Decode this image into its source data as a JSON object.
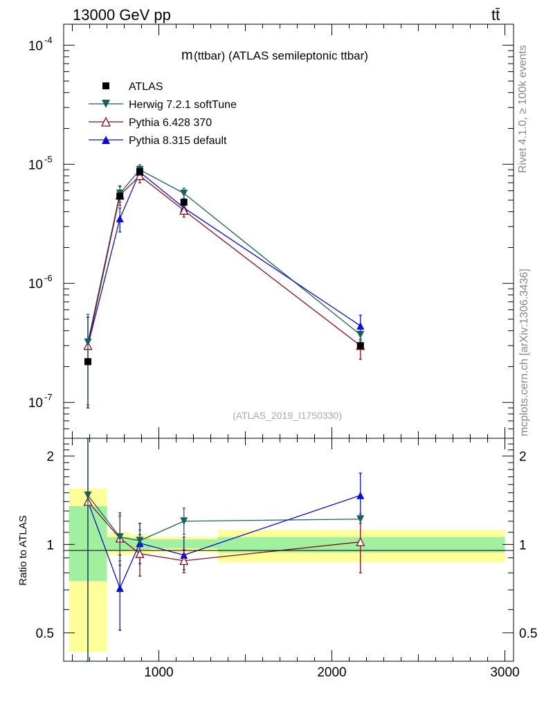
{
  "header": {
    "energy_label": "13000 GeV pp",
    "process_label": "tt̄"
  },
  "side": {
    "rivet_label": "Rivet 4.1.0, ≥ 100k events",
    "mcplots_label": "mcplots.cern.ch [arXiv:1306.3436]"
  },
  "chart_data": {
    "type": "scatter",
    "title_m": "m",
    "title_rest": "(ttbar) (ATLAS semileptonic ttbar)",
    "analysis_id": "(ATLAS_2019_I1750330)",
    "ylabel_ratio": "Ratio to ATLAS",
    "xlim": [
      450,
      3050
    ],
    "ylim_main": [
      5e-08,
      0.00015
    ],
    "ylim_ratio": [
      0.4,
      2.3
    ],
    "y_tick_exponents": [
      "-7",
      "-6",
      "-5",
      "-4"
    ],
    "y_tick_base": "10",
    "x_ticks": [
      "1000",
      "2000",
      "3000"
    ],
    "ratio_ticks": [
      "0.5",
      "1",
      "2"
    ],
    "colors": {
      "atlas": "#000000",
      "herwig": "#1a5e5e",
      "pythia6": "#8b0a1f",
      "pythia8": "#0a0adc",
      "band_inner": "#a0f0a0",
      "band_outer": "#ffff99"
    },
    "bins": [
      {
        "lo": 480,
        "hi": 700,
        "inner": [
          0.75,
          1.35
        ],
        "outer": [
          0.43,
          1.55
        ]
      },
      {
        "lo": 700,
        "hi": 830,
        "inner": [
          0.95,
          1.06
        ],
        "outer": [
          0.92,
          1.1
        ]
      },
      {
        "lo": 830,
        "hi": 950,
        "inner": [
          0.96,
          1.05
        ],
        "outer": [
          0.93,
          1.08
        ]
      },
      {
        "lo": 950,
        "hi": 1340,
        "inner": [
          0.97,
          1.04
        ],
        "outer": [
          0.94,
          1.06
        ]
      },
      {
        "lo": 1340,
        "hi": 3000,
        "inner": [
          0.94,
          1.06
        ],
        "outer": [
          0.87,
          1.12
        ]
      }
    ],
    "x": [
      590,
      775,
      890,
      1145,
      2165
    ],
    "series": [
      {
        "name": "ATLAS",
        "marker": "square",
        "values": [
          2.2e-07,
          5.4e-06,
          8.7e-06,
          4.8e-06,
          3e-07
        ],
        "err_low": [
          2.2e-07,
          5.4e-06,
          8.7e-06,
          4.8e-06,
          3e-07
        ],
        "err_high": [
          2.2e-07,
          5.4e-06,
          8.7e-06,
          4.8e-06,
          3e-07
        ],
        "ratio": null
      },
      {
        "name": "Herwig 7.2.1 softTune",
        "marker": "tri-down",
        "values": [
          3.2e-07,
          5.7e-06,
          9e-06,
          5.7e-06,
          3.7e-07
        ],
        "err_low": [
          9.5e-08,
          4.8e-06,
          8.1e-06,
          5.2e-06,
          3.3e-07
        ],
        "err_high": [
          5.5e-07,
          6.6e-06,
          9.9e-06,
          6.3e-06,
          4.1e-07
        ],
        "ratio": [
          1.47,
          1.06,
          1.03,
          1.2,
          1.22
        ],
        "ratio_low": [
          0.35,
          0.88,
          0.95,
          1.08,
          1.18
        ],
        "ratio_high": [
          2.3,
          1.25,
          1.12,
          1.33,
          1.27
        ]
      },
      {
        "name": "Pythia 6.428 370",
        "marker": "tri-up-open",
        "values": [
          3e-07,
          5.5e-06,
          8e-06,
          4.1e-06,
          3e-07
        ],
        "err_low": [
          9e-08,
          4.5e-06,
          7e-06,
          3.6e-06,
          2.3e-07
        ],
        "err_high": [
          5.2e-07,
          6.5e-06,
          9e-06,
          4.6e-06,
          3.7e-07
        ],
        "ratio": [
          1.4,
          1.05,
          0.93,
          0.88,
          1.02
        ],
        "ratio_low": [
          0.35,
          0.85,
          0.78,
          0.8,
          0.8
        ],
        "ratio_high": [
          2.3,
          1.28,
          1.08,
          0.96,
          1.22
        ]
      },
      {
        "name": "Pythia 8.315 default",
        "marker": "tri-up",
        "values": [
          3e-07,
          3.5e-06,
          8.6e-06,
          4.3e-06,
          4.4e-07
        ],
        "err_low": [
          9e-08,
          2.7e-06,
          7.6e-06,
          3.8e-06,
          3.4e-07
        ],
        "err_high": [
          5.2e-07,
          4.3e-06,
          9.6e-06,
          4.8e-06,
          5.4e-07
        ],
        "ratio": [
          1.4,
          0.71,
          1.01,
          0.92,
          1.47
        ],
        "ratio_low": [
          0.35,
          0.51,
          0.86,
          0.82,
          1.23
        ],
        "ratio_high": [
          2.3,
          0.92,
          1.18,
          1.06,
          1.75
        ]
      }
    ]
  }
}
